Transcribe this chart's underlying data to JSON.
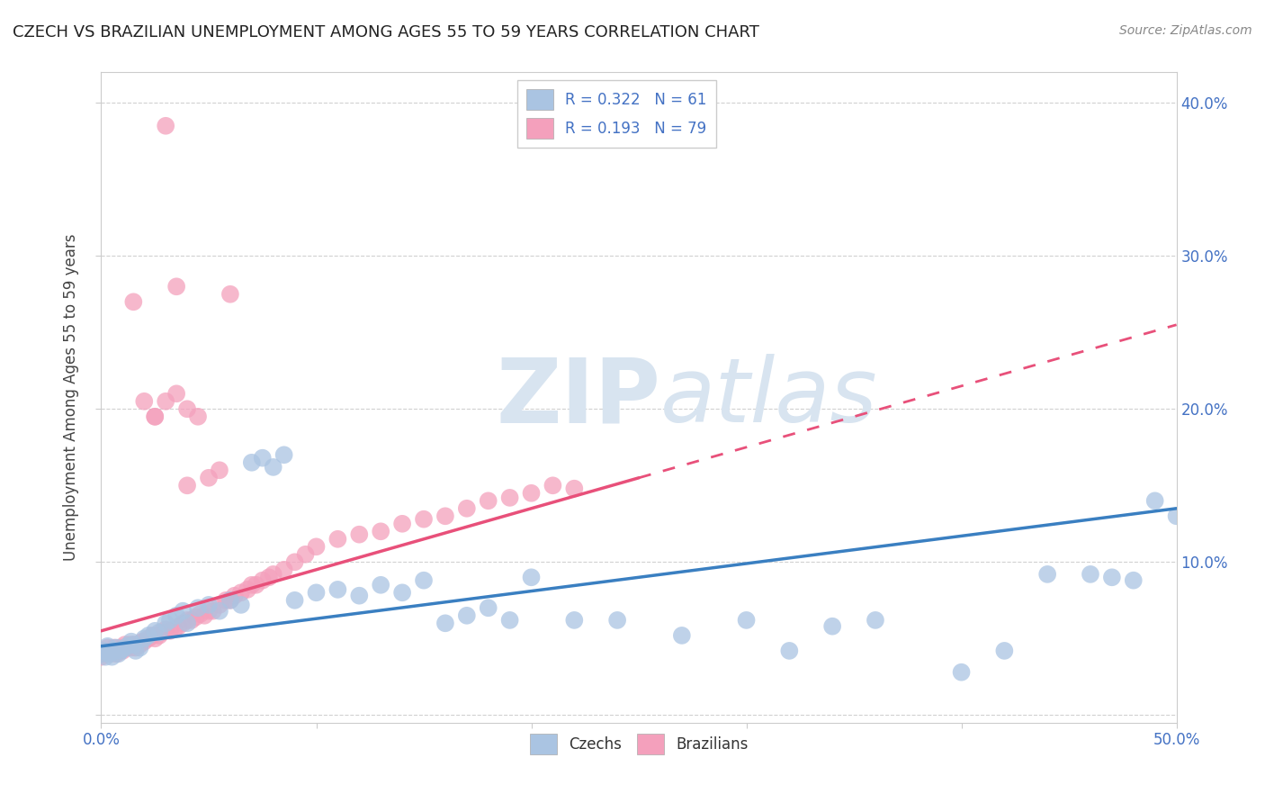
{
  "title": "CZECH VS BRAZILIAN UNEMPLOYMENT AMONG AGES 55 TO 59 YEARS CORRELATION CHART",
  "source": "Source: ZipAtlas.com",
  "ylabel": "Unemployment Among Ages 55 to 59 years",
  "xlim": [
    0.0,
    0.5
  ],
  "ylim": [
    -0.005,
    0.42
  ],
  "czech_R": 0.322,
  "czech_N": 61,
  "brazil_R": 0.193,
  "brazil_N": 79,
  "czech_color": "#aac4e2",
  "brazil_color": "#f4a0bc",
  "czech_line_color": "#3a7fc1",
  "brazil_line_color": "#e8507a",
  "background_color": "#ffffff",
  "watermark_zip": "ZIP",
  "watermark_atlas": "atlas",
  "czech_x": [
    0.0,
    0.001,
    0.002,
    0.003,
    0.004,
    0.005,
    0.006,
    0.007,
    0.008,
    0.009,
    0.01,
    0.012,
    0.014,
    0.015,
    0.016,
    0.018,
    0.02,
    0.022,
    0.025,
    0.027,
    0.03,
    0.032,
    0.035,
    0.038,
    0.04,
    0.045,
    0.05,
    0.055,
    0.06,
    0.065,
    0.07,
    0.075,
    0.08,
    0.085,
    0.09,
    0.1,
    0.11,
    0.12,
    0.13,
    0.14,
    0.15,
    0.16,
    0.17,
    0.18,
    0.19,
    0.2,
    0.22,
    0.24,
    0.27,
    0.3,
    0.32,
    0.34,
    0.36,
    0.4,
    0.42,
    0.44,
    0.46,
    0.48,
    0.49,
    0.5,
    0.47
  ],
  "czech_y": [
    0.04,
    0.042,
    0.038,
    0.045,
    0.04,
    0.038,
    0.042,
    0.044,
    0.04,
    0.042,
    0.043,
    0.045,
    0.048,
    0.046,
    0.042,
    0.044,
    0.05,
    0.052,
    0.055,
    0.054,
    0.06,
    0.062,
    0.065,
    0.068,
    0.06,
    0.07,
    0.072,
    0.068,
    0.075,
    0.072,
    0.165,
    0.168,
    0.162,
    0.17,
    0.075,
    0.08,
    0.082,
    0.078,
    0.085,
    0.08,
    0.088,
    0.06,
    0.065,
    0.07,
    0.062,
    0.09,
    0.062,
    0.062,
    0.052,
    0.062,
    0.042,
    0.058,
    0.062,
    0.028,
    0.042,
    0.092,
    0.092,
    0.088,
    0.14,
    0.13,
    0.09
  ],
  "brazil_x": [
    0.0,
    0.001,
    0.002,
    0.003,
    0.004,
    0.005,
    0.006,
    0.007,
    0.008,
    0.009,
    0.01,
    0.011,
    0.012,
    0.013,
    0.014,
    0.015,
    0.016,
    0.017,
    0.018,
    0.019,
    0.02,
    0.022,
    0.024,
    0.025,
    0.027,
    0.028,
    0.03,
    0.032,
    0.034,
    0.036,
    0.038,
    0.04,
    0.042,
    0.044,
    0.046,
    0.048,
    0.05,
    0.052,
    0.055,
    0.058,
    0.06,
    0.062,
    0.065,
    0.068,
    0.07,
    0.072,
    0.075,
    0.078,
    0.08,
    0.085,
    0.09,
    0.095,
    0.1,
    0.11,
    0.12,
    0.13,
    0.14,
    0.15,
    0.16,
    0.17,
    0.18,
    0.19,
    0.2,
    0.21,
    0.22,
    0.025,
    0.03,
    0.035,
    0.04,
    0.045,
    0.05,
    0.055,
    0.06,
    0.035,
    0.015,
    0.02,
    0.025,
    0.03,
    0.04
  ],
  "brazil_y": [
    0.038,
    0.04,
    0.042,
    0.044,
    0.04,
    0.042,
    0.044,
    0.04,
    0.042,
    0.044,
    0.042,
    0.046,
    0.044,
    0.046,
    0.044,
    0.046,
    0.044,
    0.046,
    0.046,
    0.048,
    0.048,
    0.05,
    0.052,
    0.05,
    0.052,
    0.054,
    0.056,
    0.055,
    0.056,
    0.058,
    0.06,
    0.062,
    0.062,
    0.064,
    0.066,
    0.065,
    0.068,
    0.068,
    0.072,
    0.075,
    0.075,
    0.078,
    0.08,
    0.082,
    0.085,
    0.085,
    0.088,
    0.09,
    0.092,
    0.095,
    0.1,
    0.105,
    0.11,
    0.115,
    0.118,
    0.12,
    0.125,
    0.128,
    0.13,
    0.135,
    0.14,
    0.142,
    0.145,
    0.15,
    0.148,
    0.195,
    0.205,
    0.21,
    0.2,
    0.195,
    0.155,
    0.16,
    0.275,
    0.28,
    0.27,
    0.205,
    0.195,
    0.385,
    0.15
  ]
}
